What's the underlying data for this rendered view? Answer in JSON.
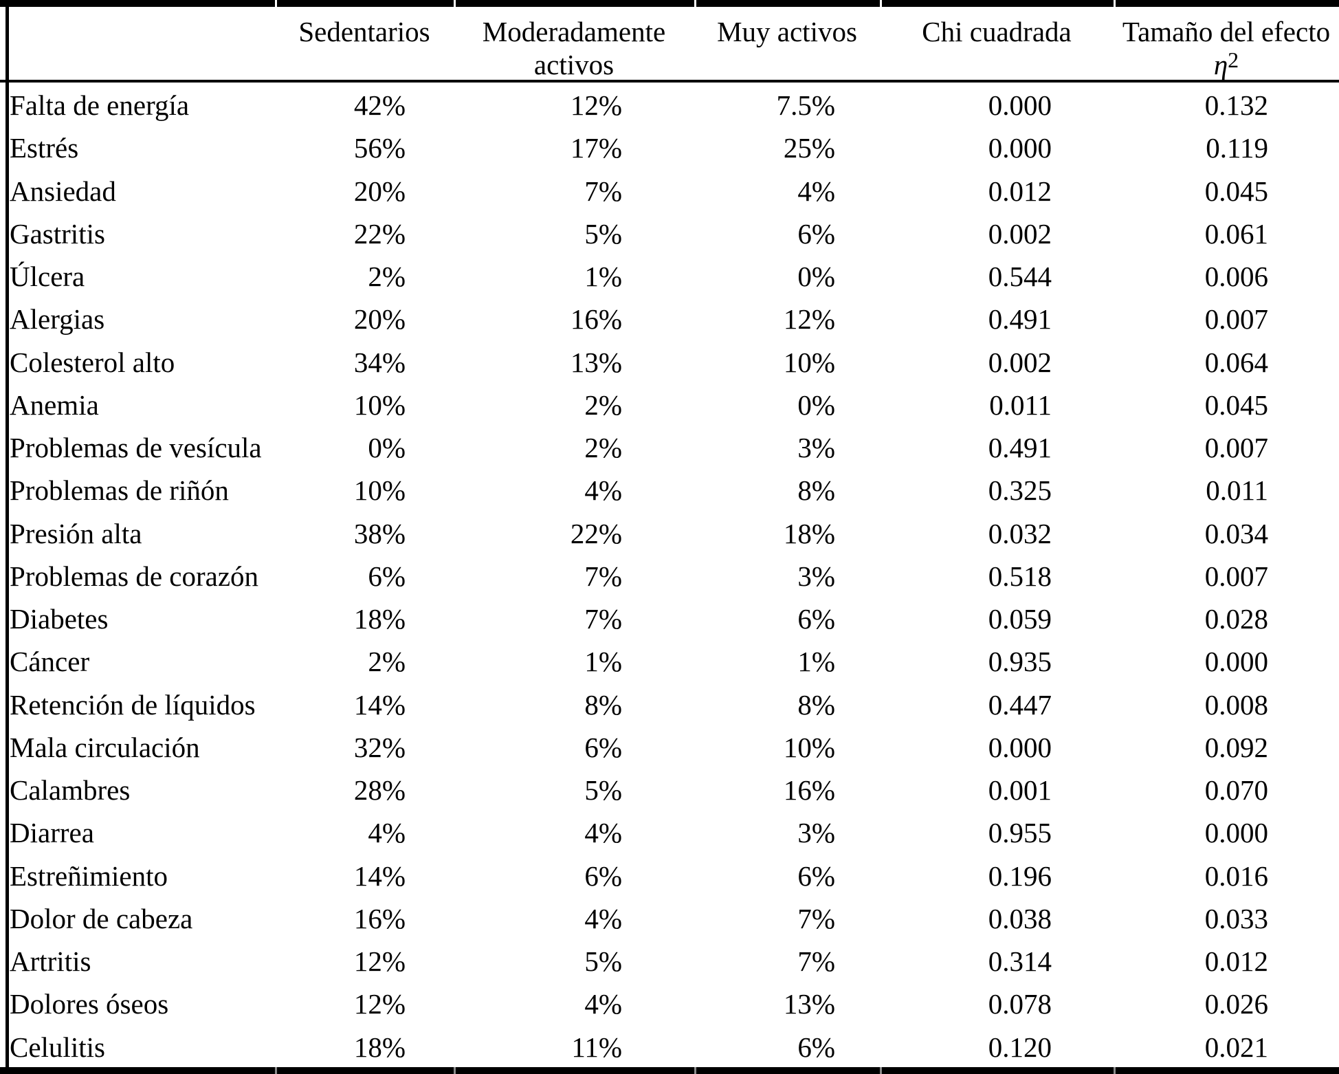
{
  "table": {
    "header": {
      "col0": "",
      "col1": "Sedentarios",
      "col2_line1": "Moderadamente",
      "col2_line2": "activos",
      "col3": "Muy activos",
      "col4": "Chi cuadrada",
      "col5_line1": "Tamaño del efecto",
      "col5_symbol": "η",
      "col5_sup": "2"
    }
  },
  "colors": {
    "background": "#ffffff",
    "text": "#000000",
    "border": "#000000"
  },
  "chart_data": {
    "type": "table",
    "title": "",
    "columns": [
      "",
      "Sedentarios",
      "Moderadamente activos",
      "Muy activos",
      "Chi cuadrada",
      "Tamaño del efecto η²"
    ],
    "rows": [
      [
        "Falta de energía",
        "42%",
        "12%",
        "7.5%",
        "0.000",
        "0.132"
      ],
      [
        "Estrés",
        "56%",
        "17%",
        "25%",
        "0.000",
        "0.119"
      ],
      [
        "Ansiedad",
        "20%",
        "7%",
        "4%",
        "0.012",
        "0.045"
      ],
      [
        "Gastritis",
        "22%",
        "5%",
        "6%",
        "0.002",
        "0.061"
      ],
      [
        "Úlcera",
        "2%",
        "1%",
        "0%",
        "0.544",
        "0.006"
      ],
      [
        "Alergias",
        "20%",
        "16%",
        "12%",
        "0.491",
        "0.007"
      ],
      [
        "Colesterol alto",
        "34%",
        "13%",
        "10%",
        "0.002",
        "0.064"
      ],
      [
        "Anemia",
        "10%",
        "2%",
        "0%",
        "0.011",
        "0.045"
      ],
      [
        "Problemas de vesícula",
        "0%",
        "2%",
        "3%",
        "0.491",
        "0.007"
      ],
      [
        "Problemas de riñón",
        "10%",
        "4%",
        "8%",
        "0.325",
        "0.011"
      ],
      [
        "Presión alta",
        "38%",
        "22%",
        "18%",
        "0.032",
        "0.034"
      ],
      [
        "Problemas de corazón",
        "6%",
        "7%",
        "3%",
        "0.518",
        "0.007"
      ],
      [
        "Diabetes",
        "18%",
        "7%",
        "6%",
        "0.059",
        "0.028"
      ],
      [
        "Cáncer",
        "2%",
        "1%",
        "1%",
        "0.935",
        "0.000"
      ],
      [
        "Retención de líquidos",
        "14%",
        "8%",
        "8%",
        "0.447",
        "0.008"
      ],
      [
        "Mala circulación",
        "32%",
        "6%",
        "10%",
        "0.000",
        "0.092"
      ],
      [
        "Calambres",
        "28%",
        "5%",
        "16%",
        "0.001",
        "0.070"
      ],
      [
        "Diarrea",
        "4%",
        "4%",
        "3%",
        "0.955",
        "0.000"
      ],
      [
        "Estreñimiento",
        "14%",
        "6%",
        "6%",
        "0.196",
        "0.016"
      ],
      [
        "Dolor de cabeza",
        "16%",
        "4%",
        "7%",
        "0.038",
        "0.033"
      ],
      [
        "Artritis",
        "12%",
        "5%",
        "7%",
        "0.314",
        "0.012"
      ],
      [
        "Dolores óseos",
        "12%",
        "4%",
        "13%",
        "0.078",
        "0.026"
      ],
      [
        "Celulitis",
        "18%",
        "11%",
        "6%",
        "0.120",
        "0.021"
      ]
    ]
  }
}
